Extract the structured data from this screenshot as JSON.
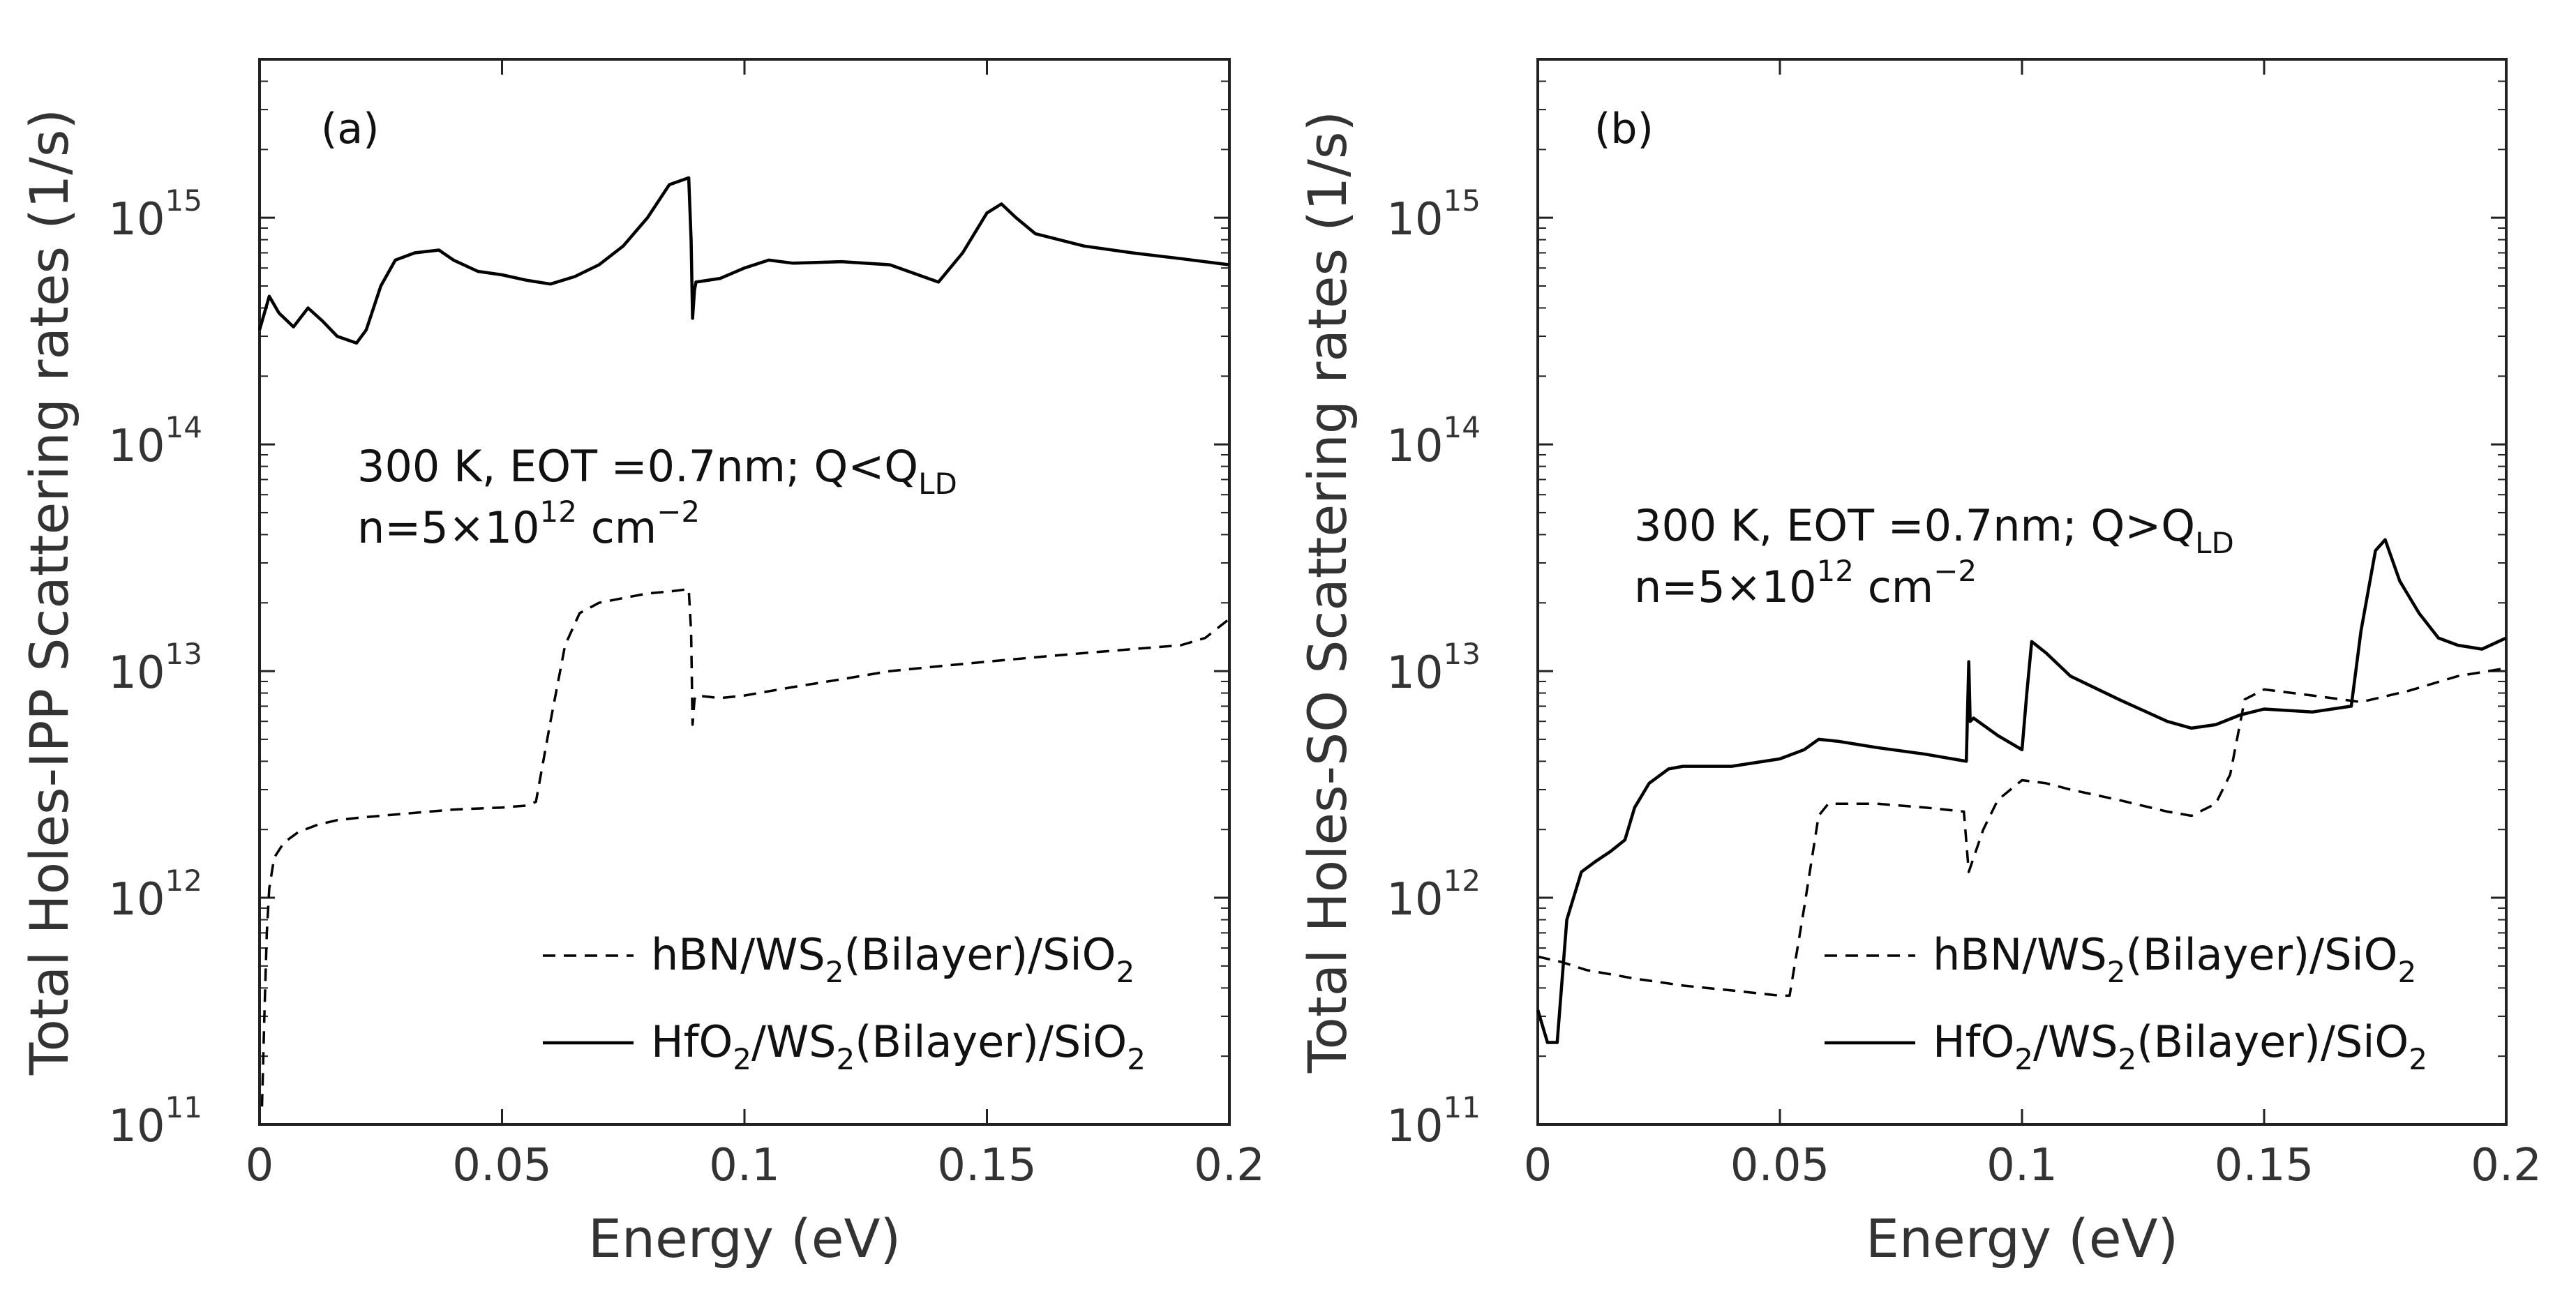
{
  "chart_data": [
    {
      "type": "line",
      "panel_label": "(a)",
      "xlabel": "Energy (eV)",
      "ylabel": "Total Holes-IPP Scattering rates (1/s)",
      "xlim": [
        0,
        0.2
      ],
      "ylim": [
        100000000000.0,
        5000000000000000.0
      ],
      "yscale": "log",
      "xticks": [
        0,
        0.05,
        0.1,
        0.15,
        0.2
      ],
      "xtick_labels": [
        "0",
        "0.05",
        "0.1",
        "0.15",
        "0.2"
      ],
      "yticks": [
        100000000000.0,
        1000000000000.0,
        10000000000000.0,
        100000000000000.0,
        1000000000000000.0
      ],
      "ytick_base": [
        "10",
        "10",
        "10",
        "10",
        "10"
      ],
      "ytick_exp": [
        "11",
        "12",
        "13",
        "14",
        "15"
      ],
      "annotation": {
        "line1": {
          "main": "300 K, EOT =0.7nm; Q<Q",
          "sub": "LD"
        },
        "line2": {
          "main": "n=5×10",
          "sup": "12",
          "mid": " cm",
          "sup2": "−2"
        }
      },
      "legend_position": "bottom-right",
      "series": [
        {
          "name": "hBN/WS2(Bilayer)/SiO2",
          "legend": [
            "hBN/WS",
            "2",
            "(Bilayer)/SiO",
            "2"
          ],
          "style": "dashed",
          "x": [
            0.0005,
            0.001,
            0.0015,
            0.002,
            0.003,
            0.005,
            0.008,
            0.012,
            0.016,
            0.02,
            0.03,
            0.04,
            0.05,
            0.055,
            0.057,
            0.06,
            0.063,
            0.066,
            0.07,
            0.075,
            0.08,
            0.085,
            0.0885,
            0.089,
            0.0893,
            0.0897,
            0.09,
            0.095,
            0.1,
            0.11,
            0.12,
            0.13,
            0.14,
            0.15,
            0.16,
            0.17,
            0.18,
            0.19,
            0.195,
            0.2
          ],
          "y": [
            120000000000.0,
            300000000000.0,
            700000000000.0,
            1100000000000.0,
            1500000000000.0,
            1750000000000.0,
            1950000000000.0,
            2100000000000.0,
            2200000000000.0,
            2250000000000.0,
            2350000000000.0,
            2450000000000.0,
            2500000000000.0,
            2550000000000.0,
            2650000000000.0,
            6000000000000.0,
            13000000000000.0,
            18000000000000.0,
            20000000000000.0,
            21000000000000.0,
            22000000000000.0,
            22500000000000.0,
            23000000000000.0,
            15000000000000.0,
            5800000000000.0,
            7500000000000.0,
            7800000000000.0,
            7600000000000.0,
            7800000000000.0,
            8500000000000.0,
            9200000000000.0,
            10000000000000.0,
            10500000000000.0,
            11000000000000.0,
            11500000000000.0,
            12000000000000.0,
            12500000000000.0,
            13000000000000.0,
            14000000000000.0,
            17000000000000.0
          ]
        },
        {
          "name": "HfO2/WS2(Bilayer)/SiO2",
          "legend": [
            "HfO",
            "2",
            "/WS",
            "2",
            "(Bilayer)/SiO",
            "2"
          ],
          "style": "solid",
          "x": [
            0,
            0.002,
            0.004,
            0.007,
            0.01,
            0.013,
            0.016,
            0.02,
            0.022,
            0.025,
            0.028,
            0.032,
            0.037,
            0.04,
            0.045,
            0.05,
            0.055,
            0.06,
            0.065,
            0.07,
            0.075,
            0.08,
            0.0845,
            0.0885,
            0.089,
            0.0893,
            0.0897,
            0.09,
            0.095,
            0.1,
            0.105,
            0.11,
            0.12,
            0.13,
            0.14,
            0.145,
            0.15,
            0.153,
            0.156,
            0.16,
            0.17,
            0.18,
            0.19,
            0.2
          ],
          "y": [
            320000000000000.0,
            450000000000000.0,
            380000000000000.0,
            330000000000000.0,
            400000000000000.0,
            350000000000000.0,
            300000000000000.0,
            280000000000000.0,
            320000000000000.0,
            500000000000000.0,
            650000000000000.0,
            700000000000000.0,
            720000000000000.0,
            650000000000000.0,
            580000000000000.0,
            560000000000000.0,
            530000000000000.0,
            510000000000000.0,
            550000000000000.0,
            620000000000000.0,
            750000000000000.0,
            1000000000000000.0,
            1400000000000000.0,
            1500000000000000.0,
            800000000000000.0,
            360000000000000.0,
            480000000000000.0,
            520000000000000.0,
            540000000000000.0,
            600000000000000.0,
            650000000000000.0,
            630000000000000.0,
            640000000000000.0,
            620000000000000.0,
            520000000000000.0,
            700000000000000.0,
            1050000000000000.0,
            1150000000000000.0,
            1000000000000000.0,
            850000000000000.0,
            750000000000000.0,
            700000000000000.0,
            660000000000000.0,
            620000000000000.0
          ]
        }
      ]
    },
    {
      "type": "line",
      "panel_label": "(b)",
      "xlabel": "Energy (eV)",
      "ylabel": "Total Holes-SO Scattering rates (1/s)",
      "xlim": [
        0,
        0.2
      ],
      "ylim": [
        100000000000.0,
        5000000000000000.0
      ],
      "yscale": "log",
      "xticks": [
        0,
        0.05,
        0.1,
        0.15,
        0.2
      ],
      "xtick_labels": [
        "0",
        "0.05",
        "0.1",
        "0.15",
        "0.2"
      ],
      "yticks": [
        100000000000.0,
        1000000000000.0,
        10000000000000.0,
        100000000000000.0,
        1000000000000000.0
      ],
      "ytick_base": [
        "10",
        "10",
        "10",
        "10",
        "10"
      ],
      "ytick_exp": [
        "11",
        "12",
        "13",
        "14",
        "15"
      ],
      "annotation": {
        "line1": {
          "main": "300 K, EOT =0.7nm; Q>Q",
          "sub": "LD"
        },
        "line2": {
          "main": "n=5×10",
          "sup": "12",
          "mid": " cm",
          "sup2": "−2"
        }
      },
      "legend_position": "bottom-right",
      "series": [
        {
          "name": "hBN/WS2(Bilayer)/SiO2",
          "legend": [
            "hBN/WS",
            "2",
            "(Bilayer)/SiO",
            "2"
          ],
          "style": "dashed",
          "x": [
            0,
            0.005,
            0.01,
            0.02,
            0.03,
            0.04,
            0.05,
            0.052,
            0.055,
            0.058,
            0.06,
            0.07,
            0.08,
            0.088,
            0.089,
            0.09,
            0.092,
            0.095,
            0.1,
            0.105,
            0.11,
            0.12,
            0.13,
            0.135,
            0.14,
            0.143,
            0.146,
            0.15,
            0.16,
            0.17,
            0.18,
            0.19,
            0.2
          ],
          "y": [
            550000000000.0,
            520000000000.0,
            480000000000.0,
            440000000000.0,
            410000000000.0,
            390000000000.0,
            370000000000.0,
            370000000000.0,
            900000000000.0,
            2300000000000.0,
            2600000000000.0,
            2600000000000.0,
            2500000000000.0,
            2400000000000.0,
            1300000000000.0,
            1500000000000.0,
            2000000000000.0,
            2700000000000.0,
            3300000000000.0,
            3200000000000.0,
            3000000000000.0,
            2700000000000.0,
            2400000000000.0,
            2300000000000.0,
            2600000000000.0,
            3500000000000.0,
            7500000000000.0,
            8300000000000.0,
            7800000000000.0,
            7300000000000.0,
            8200000000000.0,
            9500000000000.0,
            10300000000000.0
          ]
        },
        {
          "name": "HfO2/WS2(Bilayer)/SiO2",
          "legend": [
            "HfO",
            "2",
            "/WS",
            "2",
            "(Bilayer)/SiO",
            "2"
          ],
          "style": "solid",
          "x": [
            0,
            0.002,
            0.004,
            0.006,
            0.009,
            0.012,
            0.015,
            0.018,
            0.02,
            0.023,
            0.027,
            0.03,
            0.04,
            0.05,
            0.055,
            0.058,
            0.062,
            0.07,
            0.08,
            0.0885,
            0.089,
            0.0893,
            0.09,
            0.095,
            0.1,
            0.101,
            0.102,
            0.105,
            0.11,
            0.12,
            0.13,
            0.135,
            0.14,
            0.145,
            0.15,
            0.16,
            0.168,
            0.17,
            0.173,
            0.175,
            0.178,
            0.182,
            0.186,
            0.19,
            0.195,
            0.2
          ],
          "y": [
            320000000000.0,
            230000000000.0,
            230000000000.0,
            800000000000.0,
            1300000000000.0,
            1450000000000.0,
            1600000000000.0,
            1800000000000.0,
            2500000000000.0,
            3200000000000.0,
            3700000000000.0,
            3800000000000.0,
            3800000000000.0,
            4100000000000.0,
            4500000000000.0,
            5000000000000.0,
            4900000000000.0,
            4600000000000.0,
            4300000000000.0,
            4000000000000.0,
            11000000000000.0,
            6000000000000.0,
            6200000000000.0,
            5200000000000.0,
            4500000000000.0,
            8000000000000.0,
            13500000000000.0,
            12000000000000.0,
            9500000000000.0,
            7500000000000.0,
            6000000000000.0,
            5600000000000.0,
            5800000000000.0,
            6400000000000.0,
            6800000000000.0,
            6600000000000.0,
            7000000000000.0,
            15000000000000.0,
            34000000000000.0,
            38000000000000.0,
            25000000000000.0,
            18000000000000.0,
            14000000000000.0,
            13000000000000.0,
            12500000000000.0,
            14000000000000.0
          ]
        }
      ]
    }
  ]
}
